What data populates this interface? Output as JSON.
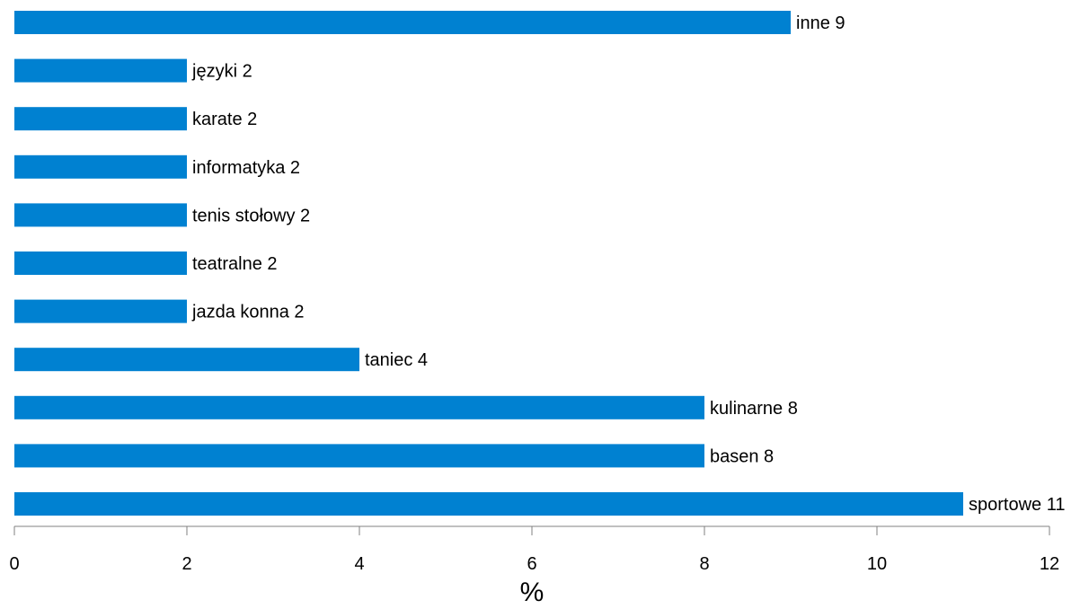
{
  "chart_data": {
    "type": "bar",
    "orientation": "horizontal",
    "categories": [
      "sportowe",
      "basen",
      "kulinarne",
      "taniec",
      "jazda konna",
      "teatralne",
      "tenis stołowy",
      "informatyka",
      "karate",
      "języki",
      "inne"
    ],
    "values": [
      11,
      8,
      8,
      4,
      2,
      2,
      2,
      2,
      2,
      2,
      9
    ],
    "data_labels": [
      "sportowe 11",
      "basen 8",
      "kulinarne 8",
      "taniec 4",
      "jazda konna 2",
      "teatralne 2",
      "tenis stołowy 2",
      "informatyka 2",
      "karate 2",
      "języki 2",
      "inne 9"
    ],
    "xlabel": "%",
    "xlim": [
      0,
      12
    ],
    "xticks": [
      0,
      2,
      4,
      6,
      8,
      10,
      12
    ],
    "xtick_labels": [
      "0",
      "2",
      "4",
      "6",
      "8",
      "10",
      "12"
    ],
    "grid": false,
    "legend": "none",
    "bar_color": "#0081D1"
  }
}
